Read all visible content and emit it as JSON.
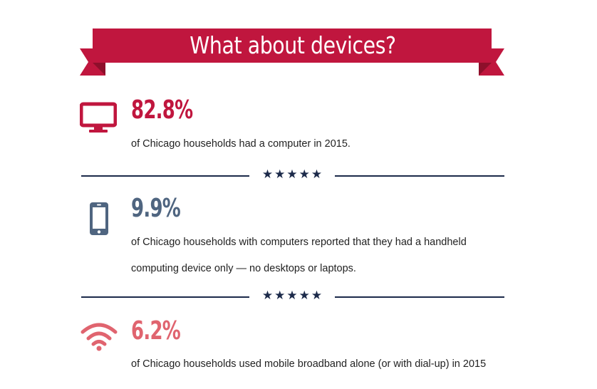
{
  "banner": {
    "title": "What about devices?"
  },
  "colors": {
    "ribbon": "#c0163e",
    "ribbon_dark": "#8e0f2b",
    "computer": "#c0163e",
    "handheld": "#4f6580",
    "broadband": "#e0646f",
    "divider": "#1c2a4a"
  },
  "stats": [
    {
      "icon": "desktop-computer-icon",
      "value": "82.8%",
      "description": "of Chicago households had a computer in 2015."
    },
    {
      "icon": "smartphone-icon",
      "value": "9.9%",
      "description": "of Chicago households with computers reported that they had a handheld computing device only — no desktops or laptops."
    },
    {
      "icon": "wifi-icon",
      "value": "6.2%",
      "description": "of Chicago households used mobile broadband alone (or with dial-up) in 2015"
    }
  ],
  "divider": {
    "stars": "★★★★★"
  }
}
